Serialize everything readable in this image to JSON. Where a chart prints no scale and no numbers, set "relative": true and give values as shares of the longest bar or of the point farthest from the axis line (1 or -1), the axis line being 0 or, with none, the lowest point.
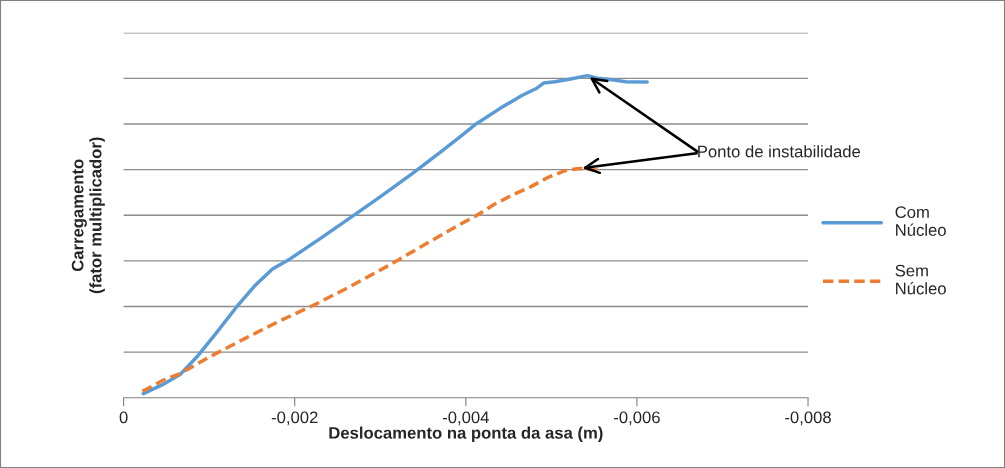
{
  "chart_data": {
    "type": "line",
    "relative": true,
    "xlabel": "Deslocamento na ponta da asa (m)",
    "ylabel": "Carregamento\n(fator multiplicador)",
    "xlim": [
      0,
      -0.008
    ],
    "xticks": [
      {
        "value": 0,
        "label": "0"
      },
      {
        "value": -0.002,
        "label": "-0,002"
      },
      {
        "value": -0.004,
        "label": "-0,004"
      },
      {
        "value": -0.006,
        "label": "-0,006"
      },
      {
        "value": -0.008,
        "label": "-0,008"
      }
    ],
    "grid": "y",
    "legend": "right",
    "annotations": [
      "Ponto de instabilidade"
    ],
    "series": [
      {
        "name": "Com Núcleo",
        "color": "#5b9bd5",
        "line_style": "solid",
        "x": [
          -0.00023,
          -0.00045,
          -0.00066,
          -0.00086,
          -0.00107,
          -0.00132,
          -0.00153,
          -0.00174,
          -0.00195,
          -0.00228,
          -0.00266,
          -0.00299,
          -0.00337,
          -0.0037,
          -0.00395,
          -0.00412,
          -0.00441,
          -0.00466,
          -0.00483,
          -0.00491,
          -0.00504,
          -0.00521,
          -0.00542,
          -0.00554,
          -0.00571,
          -0.00587,
          -0.00612
        ],
        "values": [
          0.013,
          0.04,
          0.072,
          0.128,
          0.197,
          0.282,
          0.347,
          0.4,
          0.432,
          0.491,
          0.561,
          0.622,
          0.695,
          0.762,
          0.814,
          0.85,
          0.9,
          0.939,
          0.961,
          0.977,
          0.981,
          0.989,
          1.0,
          0.992,
          0.987,
          0.981,
          0.98
        ]
      },
      {
        "name": "Sem Núcleo",
        "color": "#ed7d31",
        "line_style": "dashed",
        "x": [
          -0.00022,
          -0.00045,
          -0.00066,
          -0.00099,
          -0.00141,
          -0.00182,
          -0.00224,
          -0.00266,
          -0.00308,
          -0.00349,
          -0.00391,
          -0.00412,
          -0.00433,
          -0.00454,
          -0.00475,
          -0.00496,
          -0.00516,
          -0.00533,
          -0.00554
        ],
        "values": [
          0.02,
          0.053,
          0.075,
          0.125,
          0.183,
          0.238,
          0.29,
          0.347,
          0.408,
          0.471,
          0.535,
          0.565,
          0.6,
          0.629,
          0.654,
          0.684,
          0.705,
          0.712,
          0.707
        ]
      }
    ]
  }
}
